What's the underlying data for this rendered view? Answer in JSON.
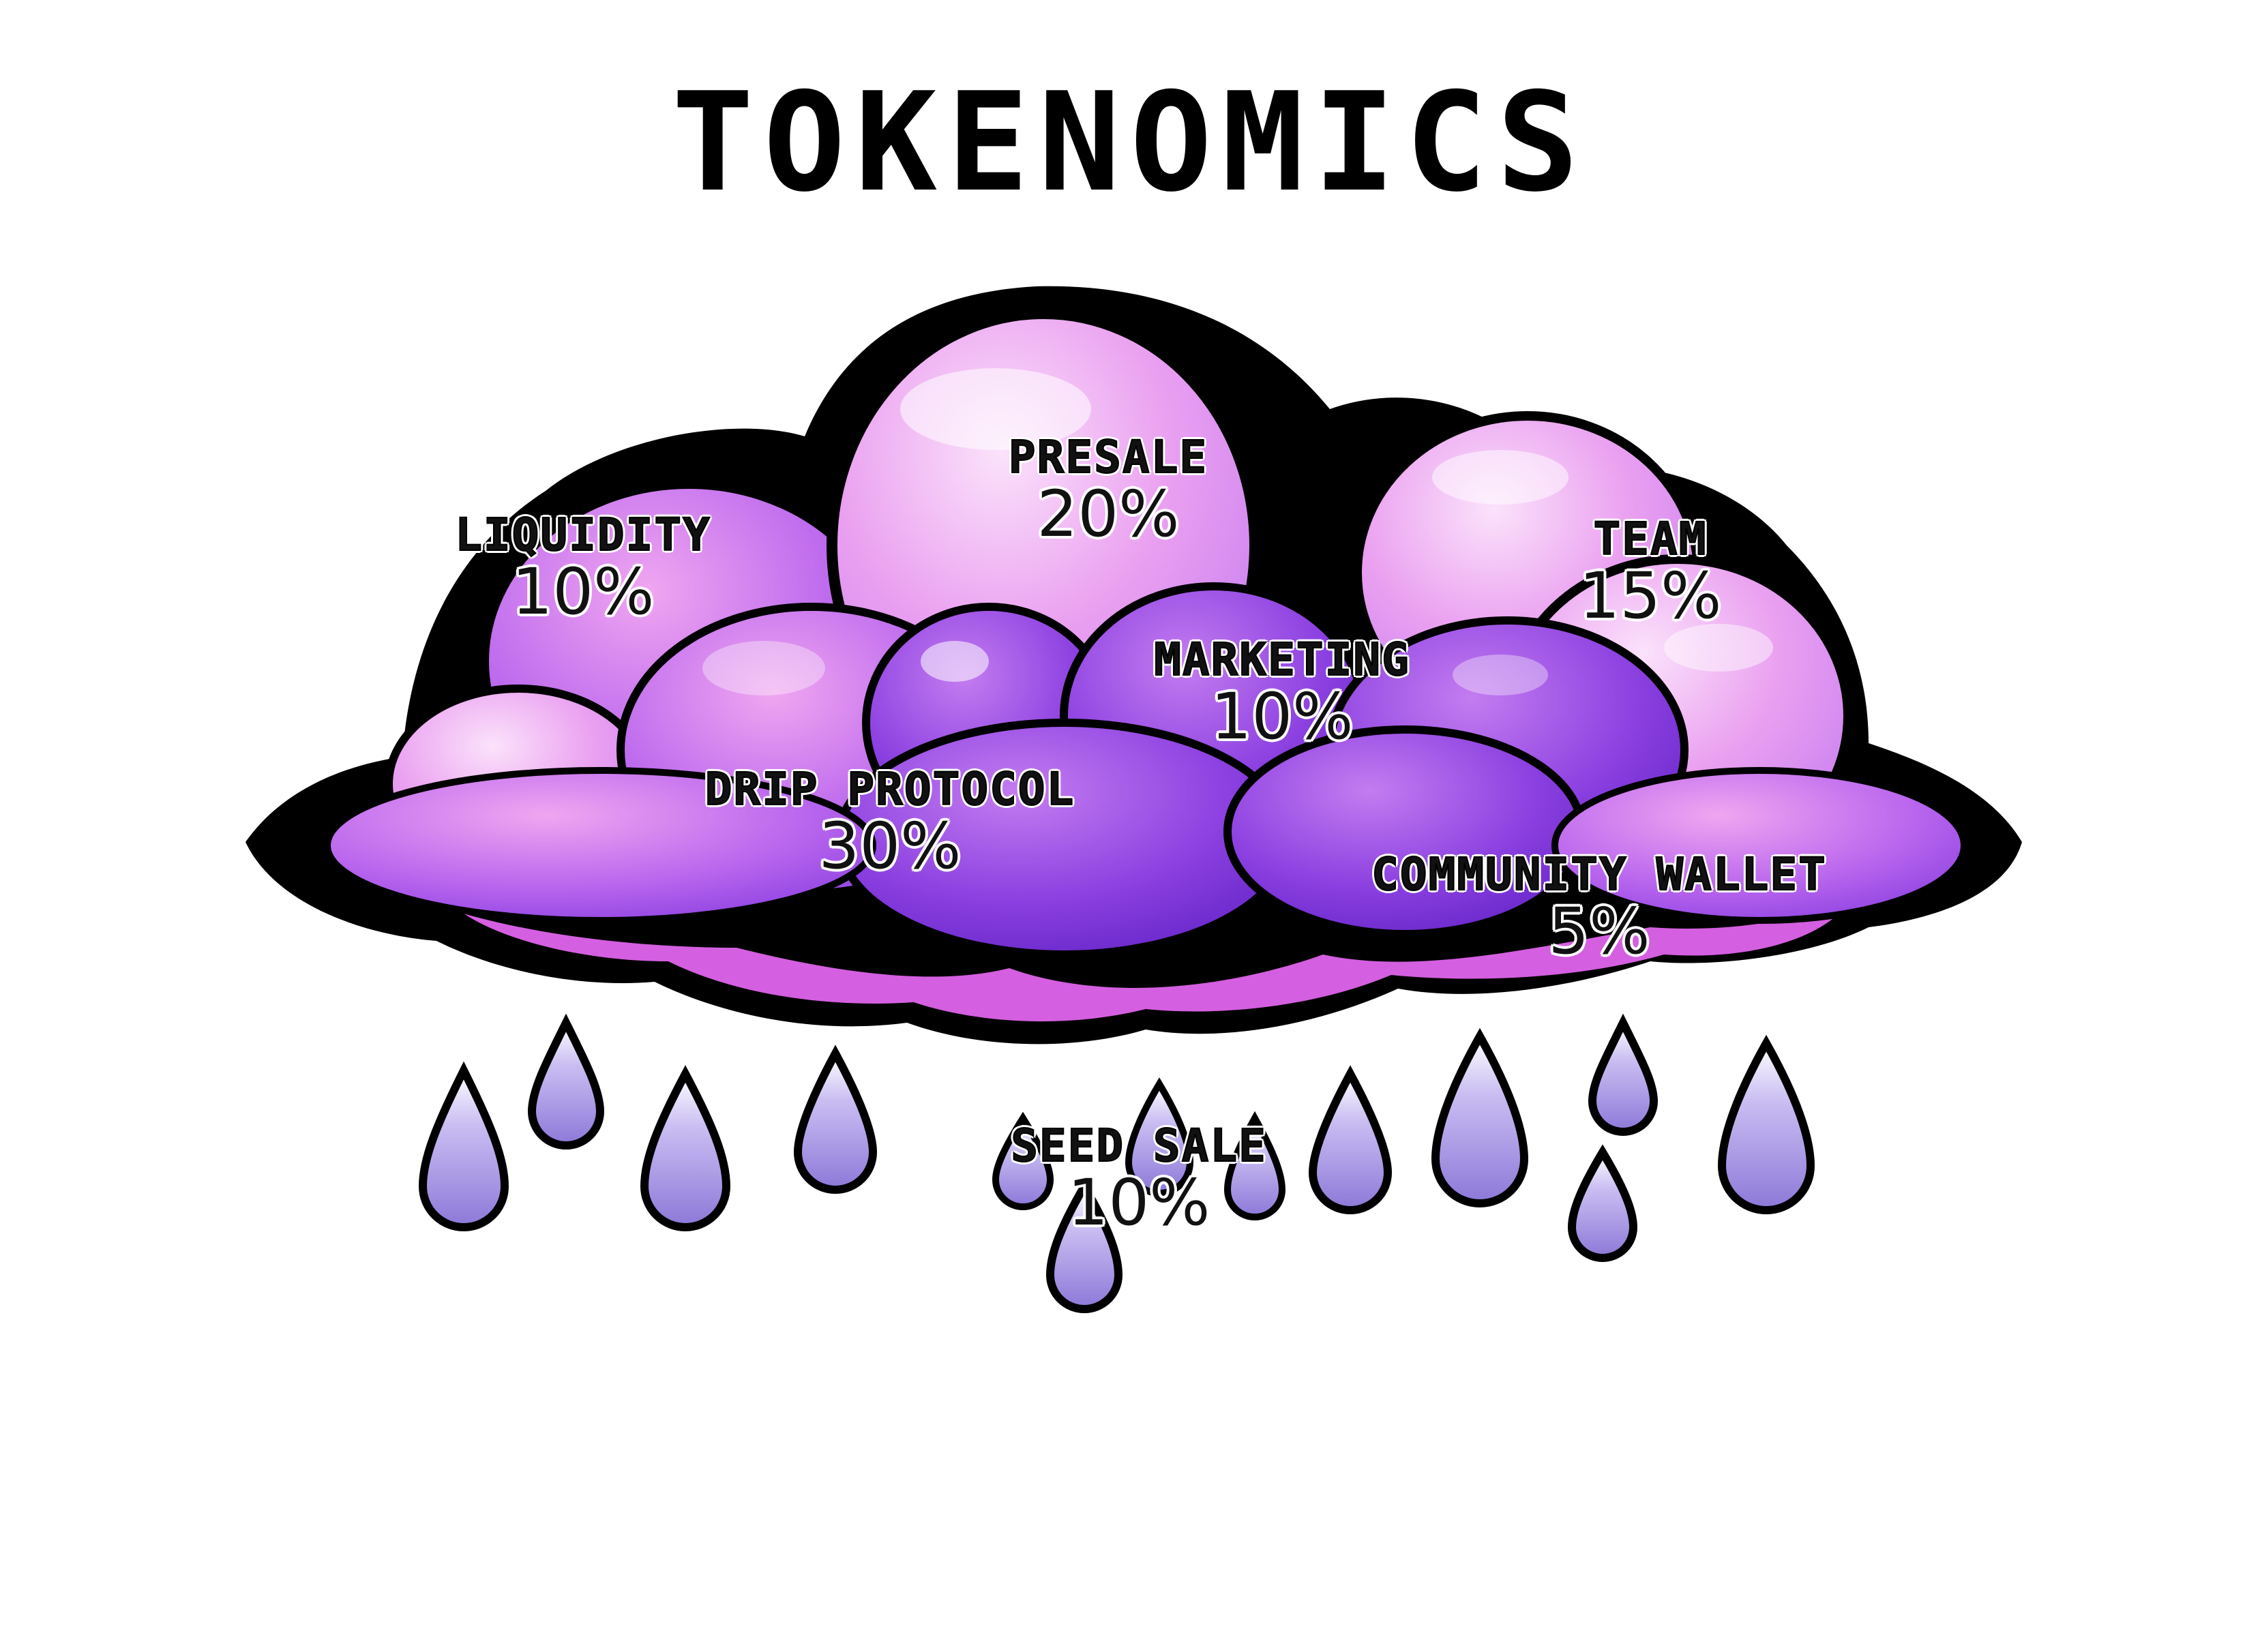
{
  "title": "TOKENOMICS",
  "colors": {
    "outline": "#000000",
    "cloud_light": "#f0a6f0",
    "cloud_mid": "#c07cf0",
    "cloud_dark": "#8a3fe0",
    "cloud_deep": "#6f2ccf",
    "cloud_underside": "#d45fe0",
    "raindrop": "#a99ae6",
    "background": "#ffffff"
  },
  "allocations": {
    "presale": {
      "name": "PRESALE",
      "percent": "20%",
      "value": 20
    },
    "liquidity": {
      "name": "LIQUIDITY",
      "percent": "10%",
      "value": 10
    },
    "team": {
      "name": "TEAM",
      "percent": "15%",
      "value": 15
    },
    "marketing": {
      "name": "MARKETING",
      "percent": "10%",
      "value": 10
    },
    "drip_protocol": {
      "name": "DRIP PROTOCOL",
      "percent": "30%",
      "value": 30
    },
    "community_wallet": {
      "name": "COMMUNITY WALLET",
      "percent": "5%",
      "value": 5
    },
    "seed_sale": {
      "name": "SEED SALE",
      "percent": "10%",
      "value": 10
    }
  }
}
